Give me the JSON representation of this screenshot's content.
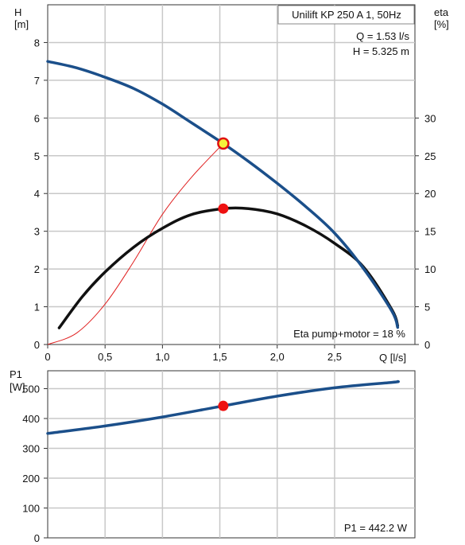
{
  "chart_data": [
    {
      "type": "line",
      "title": "Unilift KP 250 A 1, 50Hz",
      "xlabel": "Q [l/s]",
      "ylabel_left": [
        "H",
        "[m]"
      ],
      "ylabel_right": [
        "eta",
        "[%]"
      ],
      "xlim": [
        0,
        3.2
      ],
      "ylim_left": [
        0,
        9
      ],
      "ylim_right": [
        0,
        45
      ],
      "x_ticks": [
        0,
        0.5,
        1.0,
        1.5,
        2.0,
        2.5
      ],
      "x_tick_labels": [
        "0",
        "0,5",
        "1,0",
        "1,5",
        "2,0",
        "2,5"
      ],
      "y_ticks_left": [
        0,
        1,
        2,
        3,
        4,
        5,
        6,
        7,
        8
      ],
      "y_ticks_right": [
        0,
        5,
        10,
        15,
        20,
        25,
        30
      ],
      "grid": true,
      "series": [
        {
          "axis": "left",
          "color": "#1b4f8a",
          "x": [
            0,
            0.25,
            0.5,
            0.75,
            1.0,
            1.25,
            1.53,
            1.75,
            2.0,
            2.25,
            2.5,
            2.75,
            3.0,
            3.05
          ],
          "values": [
            7.5,
            7.33,
            7.08,
            6.78,
            6.37,
            5.88,
            5.325,
            4.85,
            4.27,
            3.65,
            2.95,
            2.02,
            0.88,
            0.45
          ]
        },
        {
          "axis": "right",
          "color": "#111111",
          "x": [
            0.1,
            0.3,
            0.5,
            0.75,
            1.0,
            1.25,
            1.53,
            1.75,
            2.0,
            2.25,
            2.5,
            2.75,
            3.0,
            3.05
          ],
          "values": [
            2.2,
            6.3,
            9.6,
            12.9,
            15.4,
            17.2,
            18,
            18.0,
            17.3,
            15.7,
            13.4,
            10.3,
            4.6,
            2.5
          ]
        },
        {
          "axis": "left",
          "color": "#e02020",
          "x": [
            0,
            0.25,
            0.5,
            0.75,
            1.0,
            1.25,
            1.53
          ],
          "values": [
            0,
            0.3,
            1.07,
            2.2,
            3.45,
            4.42,
            5.325
          ]
        }
      ],
      "operating_point": {
        "x": 1.53,
        "H": 5.325,
        "eta": 18
      },
      "annotations": [
        "Q = 1.53 l/s",
        "H = 5.325 m",
        "Eta pump+motor = 18 %"
      ]
    },
    {
      "type": "line",
      "ylabel": [
        "P1",
        "[W]"
      ],
      "xlim": [
        0,
        3.2
      ],
      "ylim": [
        0,
        560
      ],
      "y_ticks": [
        0,
        100,
        200,
        300,
        400,
        500
      ],
      "grid": true,
      "series": [
        {
          "color": "#1b4f8a",
          "x": [
            0,
            0.5,
            1.0,
            1.53,
            2.0,
            2.5,
            3.0,
            3.05
          ],
          "values": [
            350,
            375,
            405,
            442.2,
            475,
            503,
            521,
            524
          ]
        }
      ],
      "operating_point": {
        "x": 1.53,
        "value": 442.2
      },
      "annotations": [
        "P1 = 442.2 W"
      ]
    }
  ]
}
